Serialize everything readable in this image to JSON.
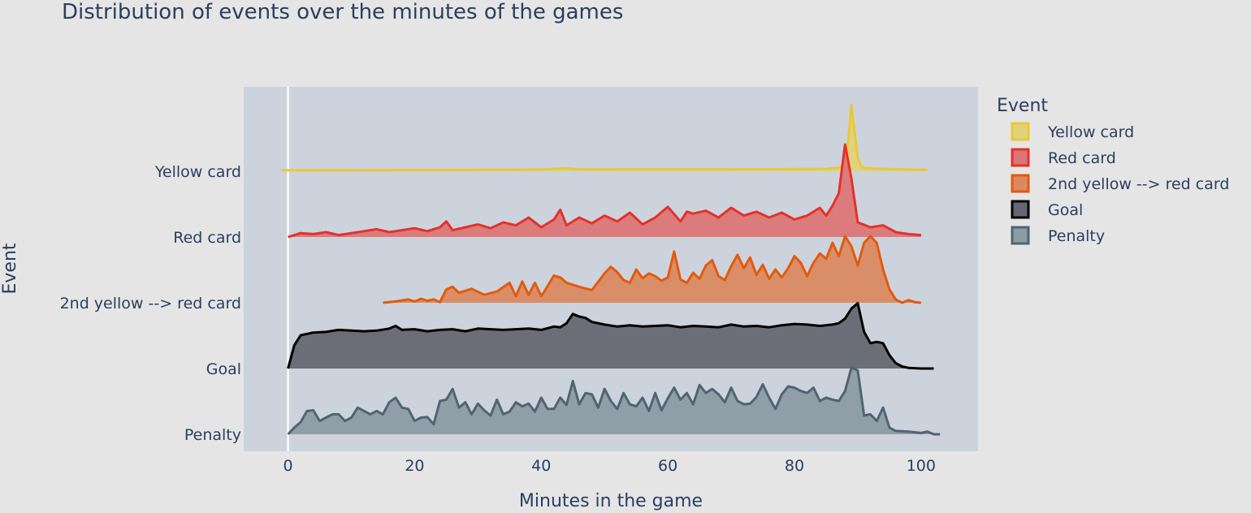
{
  "chart_data": {
    "type": "area",
    "subtype": "ridgeline",
    "title": "Distribution of events over the minutes of the games",
    "xlabel": "Minutes in the game",
    "ylabel": "Event",
    "xlim": [
      -7,
      109
    ],
    "x_ticks": [
      0,
      20,
      40,
      60,
      80,
      100
    ],
    "grid": true,
    "legend": {
      "title": "Event",
      "placement": "right"
    },
    "categories": [
      "Yellow card",
      "Red card",
      "2nd yellow --> red card",
      "Goal",
      "Penalty"
    ],
    "series": [
      {
        "name": "Yellow card",
        "color": "#e8c83a",
        "fill": "#e2d27a",
        "x": [
          -1,
          10,
          20,
          30,
          40,
          44,
          45,
          46,
          55,
          65,
          75,
          85,
          87,
          88,
          88.5,
          89,
          89.5,
          90,
          90.5,
          91,
          93,
          96,
          101
        ],
        "density": [
          0.015,
          0.017,
          0.018,
          0.02,
          0.025,
          0.045,
          0.035,
          0.03,
          0.028,
          0.028,
          0.03,
          0.035,
          0.05,
          0.12,
          0.45,
          1.0,
          0.6,
          0.2,
          0.08,
          0.05,
          0.04,
          0.03,
          0.02
        ]
      },
      {
        "name": "Red card",
        "color": "#e3322b",
        "fill": "#dc7676",
        "x": [
          0,
          2,
          4,
          6,
          8,
          10,
          12,
          14,
          16,
          18,
          20,
          22,
          24,
          25,
          26,
          28,
          30,
          32,
          34,
          36,
          38,
          40,
          42,
          43,
          44,
          46,
          48,
          50,
          52,
          54,
          56,
          58,
          60,
          62,
          63,
          64,
          66,
          68,
          70,
          72,
          74,
          76,
          78,
          80,
          82,
          84,
          85,
          86,
          87,
          88,
          89,
          90,
          92,
          94,
          96,
          98,
          100
        ],
        "density": [
          0.0,
          0.04,
          0.03,
          0.05,
          0.02,
          0.04,
          0.06,
          0.08,
          0.05,
          0.07,
          0.09,
          0.06,
          0.1,
          0.16,
          0.07,
          0.1,
          0.13,
          0.09,
          0.15,
          0.12,
          0.2,
          0.1,
          0.18,
          0.28,
          0.12,
          0.2,
          0.14,
          0.22,
          0.16,
          0.25,
          0.13,
          0.2,
          0.31,
          0.16,
          0.26,
          0.24,
          0.27,
          0.2,
          0.3,
          0.22,
          0.26,
          0.2,
          0.25,
          0.18,
          0.22,
          0.3,
          0.22,
          0.32,
          0.45,
          0.95,
          0.6,
          0.15,
          0.1,
          0.12,
          0.05,
          0.03,
          0.02
        ]
      },
      {
        "name": "2nd yellow --> red card",
        "color": "#e25a0e",
        "fill": "#d98a60",
        "x": [
          15,
          17,
          19,
          20,
          21,
          22,
          23,
          24,
          25,
          26,
          27,
          29,
          31,
          33,
          35,
          36,
          37,
          38,
          39,
          40,
          41,
          42,
          43,
          44,
          46,
          48,
          50,
          51,
          52,
          53,
          54,
          55,
          56,
          57,
          58,
          59,
          60,
          61,
          62,
          63,
          64,
          65,
          66,
          67,
          68,
          69,
          70,
          71,
          72,
          73,
          74,
          75,
          76,
          77,
          78,
          79,
          80,
          81,
          82,
          83,
          84,
          85,
          86,
          87,
          88,
          89,
          90,
          91,
          92,
          93,
          94,
          95,
          96,
          97,
          98,
          99,
          100
        ],
        "density": [
          0.0,
          0.02,
          0.05,
          0.02,
          0.06,
          0.03,
          0.05,
          0.01,
          0.2,
          0.24,
          0.15,
          0.21,
          0.12,
          0.17,
          0.3,
          0.1,
          0.32,
          0.12,
          0.3,
          0.1,
          0.25,
          0.41,
          0.38,
          0.3,
          0.24,
          0.19,
          0.44,
          0.54,
          0.46,
          0.34,
          0.3,
          0.5,
          0.37,
          0.44,
          0.4,
          0.33,
          0.38,
          0.77,
          0.35,
          0.3,
          0.45,
          0.36,
          0.56,
          0.64,
          0.4,
          0.34,
          0.55,
          0.72,
          0.52,
          0.68,
          0.42,
          0.57,
          0.36,
          0.5,
          0.38,
          0.52,
          0.7,
          0.6,
          0.4,
          0.6,
          0.74,
          0.66,
          0.9,
          0.7,
          1.0,
          0.85,
          0.56,
          0.9,
          1.0,
          0.9,
          0.5,
          0.2,
          0.05,
          0.0,
          0.04,
          0.01,
          0.0
        ]
      },
      {
        "name": "Goal",
        "color": "#000000",
        "fill": "#656870",
        "x": [
          0,
          1,
          2,
          4,
          6,
          8,
          10,
          12,
          14,
          16,
          17,
          18,
          20,
          22,
          24,
          26,
          28,
          30,
          32,
          34,
          36,
          38,
          40,
          42,
          43,
          44,
          45,
          46,
          47,
          48,
          50,
          52,
          54,
          56,
          58,
          60,
          62,
          64,
          66,
          68,
          70,
          72,
          74,
          76,
          78,
          80,
          82,
          84,
          86,
          87,
          88,
          89,
          90,
          91,
          92,
          93,
          94,
          95,
          96,
          97,
          98,
          100,
          102
        ],
        "density": [
          0.0,
          0.35,
          0.5,
          0.54,
          0.55,
          0.58,
          0.57,
          0.56,
          0.57,
          0.6,
          0.64,
          0.58,
          0.59,
          0.56,
          0.58,
          0.59,
          0.56,
          0.6,
          0.59,
          0.58,
          0.59,
          0.6,
          0.58,
          0.63,
          0.62,
          0.68,
          0.82,
          0.78,
          0.76,
          0.7,
          0.66,
          0.63,
          0.65,
          0.63,
          0.64,
          0.65,
          0.62,
          0.64,
          0.63,
          0.62,
          0.66,
          0.63,
          0.64,
          0.62,
          0.65,
          0.67,
          0.66,
          0.64,
          0.66,
          0.68,
          0.75,
          0.9,
          0.98,
          0.55,
          0.38,
          0.4,
          0.38,
          0.2,
          0.08,
          0.03,
          0.01,
          0.0,
          0.0
        ]
      },
      {
        "name": "Penalty",
        "color": "#506472",
        "fill": "#8c9ca3",
        "x": [
          0,
          1,
          2,
          3,
          4,
          5,
          6,
          7,
          8,
          9,
          10,
          11,
          12,
          13,
          14,
          15,
          16,
          17,
          18,
          19,
          20,
          21,
          22,
          23,
          24,
          25,
          26,
          27,
          28,
          29,
          30,
          31,
          32,
          33,
          34,
          35,
          36,
          37,
          38,
          39,
          40,
          41,
          42,
          43,
          44,
          45,
          46,
          47,
          48,
          49,
          50,
          51,
          52,
          53,
          54,
          55,
          56,
          57,
          58,
          59,
          60,
          61,
          62,
          63,
          64,
          65,
          66,
          67,
          68,
          69,
          70,
          71,
          72,
          73,
          74,
          75,
          76,
          77,
          78,
          79,
          80,
          81,
          82,
          83,
          84,
          85,
          86,
          87,
          88,
          89,
          90,
          91,
          92,
          93,
          94,
          95,
          96,
          98,
          100,
          101,
          102,
          103
        ],
        "density": [
          0.0,
          0.1,
          0.18,
          0.35,
          0.36,
          0.2,
          0.25,
          0.3,
          0.3,
          0.2,
          0.25,
          0.4,
          0.35,
          0.3,
          0.35,
          0.3,
          0.48,
          0.55,
          0.4,
          0.38,
          0.2,
          0.25,
          0.26,
          0.15,
          0.5,
          0.52,
          0.68,
          0.4,
          0.48,
          0.3,
          0.46,
          0.36,
          0.28,
          0.52,
          0.3,
          0.34,
          0.48,
          0.42,
          0.46,
          0.34,
          0.55,
          0.38,
          0.38,
          0.55,
          0.44,
          0.8,
          0.45,
          0.62,
          0.6,
          0.4,
          0.68,
          0.5,
          0.38,
          0.62,
          0.45,
          0.42,
          0.55,
          0.35,
          0.62,
          0.36,
          0.54,
          0.7,
          0.52,
          0.62,
          0.45,
          0.74,
          0.62,
          0.68,
          0.6,
          0.48,
          0.7,
          0.5,
          0.45,
          0.46,
          0.56,
          0.75,
          0.55,
          0.38,
          0.6,
          0.72,
          0.7,
          0.65,
          0.62,
          0.7,
          0.5,
          0.55,
          0.52,
          0.5,
          0.65,
          1.0,
          0.96,
          0.28,
          0.3,
          0.2,
          0.4,
          0.1,
          0.05,
          0.04,
          0.02,
          0.04,
          0.0,
          0.0
        ]
      }
    ]
  }
}
